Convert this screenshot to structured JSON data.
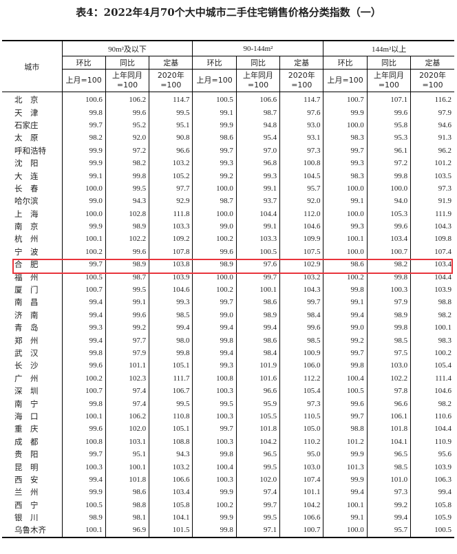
{
  "title": "表4：2022年4月70个大中城市二手住宅销售价格分类指数（一）",
  "header": {
    "city": "城市",
    "groups": [
      "90m²及以下",
      "90-144m²",
      "144m²以上"
    ],
    "metrics": [
      "环比",
      "同比",
      "定基"
    ],
    "bases": [
      "上月=100",
      "上年同月=100",
      "2020年=100"
    ]
  },
  "highlight_color": "#e8333a",
  "highlighted_city": "合　肥",
  "rows": [
    [
      "北　京",
      "100.6",
      "106.2",
      "114.7",
      "100.5",
      "106.6",
      "114.7",
      "100.7",
      "107.1",
      "116.2"
    ],
    [
      "天　津",
      "99.8",
      "99.6",
      "99.5",
      "99.1",
      "98.7",
      "97.6",
      "99.9",
      "99.6",
      "97.9"
    ],
    [
      "石家庄",
      "99.7",
      "95.2",
      "95.1",
      "99.9",
      "94.8",
      "93.0",
      "100.0",
      "95.8",
      "94.6"
    ],
    [
      "太　原",
      "98.2",
      "92.0",
      "90.8",
      "98.6",
      "95.4",
      "93.1",
      "98.3",
      "95.3",
      "91.3"
    ],
    [
      "呼和浩特",
      "99.9",
      "97.2",
      "96.6",
      "99.7",
      "97.0",
      "97.3",
      "99.7",
      "96.1",
      "96.2"
    ],
    [
      "沈　阳",
      "99.9",
      "98.2",
      "103.2",
      "99.3",
      "96.8",
      "100.8",
      "99.3",
      "97.2",
      "101.2"
    ],
    [
      "大　连",
      "99.1",
      "99.8",
      "105.2",
      "99.2",
      "99.3",
      "104.5",
      "98.3",
      "99.8",
      "103.5"
    ],
    [
      "长　春",
      "100.0",
      "99.5",
      "97.7",
      "100.0",
      "99.1",
      "95.7",
      "100.0",
      "100.0",
      "97.3"
    ],
    [
      "哈尔滨",
      "99.0",
      "94.3",
      "92.9",
      "98.7",
      "93.7",
      "92.0",
      "99.1",
      "94.0",
      "91.9"
    ],
    [
      "上　海",
      "100.0",
      "102.8",
      "111.8",
      "100.0",
      "104.4",
      "112.0",
      "100.0",
      "105.3",
      "111.9"
    ],
    [
      "南　京",
      "99.9",
      "98.9",
      "103.3",
      "99.0",
      "99.1",
      "104.6",
      "99.3",
      "99.6",
      "104.3"
    ],
    [
      "杭　州",
      "100.1",
      "102.2",
      "109.2",
      "100.2",
      "103.3",
      "109.9",
      "100.1",
      "103.4",
      "109.8"
    ],
    [
      "宁　波",
      "100.2",
      "99.6",
      "107.8",
      "99.6",
      "100.5",
      "107.5",
      "100.0",
      "100.7",
      "107.4"
    ],
    [
      "合　肥",
      "99.7",
      "98.9",
      "103.8",
      "98.9",
      "97.6",
      "102.9",
      "98.6",
      "98.2",
      "103.4"
    ],
    [
      "福　州",
      "100.5",
      "98.7",
      "103.9",
      "100.0",
      "99.7",
      "103.2",
      "100.2",
      "99.8",
      "104.4"
    ],
    [
      "厦　门",
      "100.7",
      "99.5",
      "104.6",
      "100.2",
      "100.1",
      "104.3",
      "99.8",
      "100.3",
      "103.9"
    ],
    [
      "南　昌",
      "99.4",
      "99.1",
      "99.3",
      "99.7",
      "98.6",
      "99.7",
      "99.1",
      "97.9",
      "98.8"
    ],
    [
      "济　南",
      "99.4",
      "99.6",
      "98.5",
      "99.0",
      "98.9",
      "98.4",
      "99.4",
      "98.9",
      "98.2"
    ],
    [
      "青　岛",
      "99.3",
      "99.2",
      "99.4",
      "99.4",
      "99.4",
      "99.6",
      "99.0",
      "99.8",
      "100.1"
    ],
    [
      "郑　州",
      "99.4",
      "97.7",
      "98.0",
      "99.8",
      "98.6",
      "98.5",
      "99.2",
      "98.5",
      "98.3"
    ],
    [
      "武　汉",
      "99.8",
      "97.9",
      "99.8",
      "99.4",
      "98.4",
      "100.9",
      "99.7",
      "97.5",
      "100.2"
    ],
    [
      "长　沙",
      "99.6",
      "101.1",
      "105.1",
      "99.3",
      "101.9",
      "106.0",
      "99.8",
      "103.0",
      "105.4"
    ],
    [
      "广　州",
      "100.2",
      "102.3",
      "111.7",
      "100.8",
      "101.6",
      "112.2",
      "100.4",
      "102.2",
      "111.4"
    ],
    [
      "深　圳",
      "100.7",
      "97.4",
      "106.7",
      "100.3",
      "96.6",
      "105.4",
      "100.5",
      "97.8",
      "104.6"
    ],
    [
      "南　宁",
      "99.8",
      "97.4",
      "99.5",
      "99.5",
      "95.9",
      "97.3",
      "99.6",
      "96.6",
      "98.2"
    ],
    [
      "海　口",
      "100.1",
      "106.2",
      "110.8",
      "100.3",
      "105.5",
      "110.5",
      "99.7",
      "106.1",
      "110.6"
    ],
    [
      "重　庆",
      "99.6",
      "102.0",
      "105.1",
      "99.7",
      "101.8",
      "105.0",
      "98.8",
      "101.8",
      "104.4"
    ],
    [
      "成　都",
      "100.8",
      "103.1",
      "108.8",
      "100.3",
      "104.2",
      "110.2",
      "101.2",
      "104.1",
      "110.9"
    ],
    [
      "贵　阳",
      "99.7",
      "95.1",
      "94.3",
      "99.8",
      "96.5",
      "95.0",
      "99.9",
      "96.5",
      "95.6"
    ],
    [
      "昆　明",
      "100.3",
      "100.1",
      "103.2",
      "100.4",
      "99.5",
      "103.0",
      "101.3",
      "98.5",
      "103.9"
    ],
    [
      "西　安",
      "99.4",
      "101.8",
      "106.6",
      "100.3",
      "102.0",
      "107.4",
      "99.9",
      "101.0",
      "106.3"
    ],
    [
      "兰　州",
      "99.9",
      "98.6",
      "103.4",
      "99.9",
      "97.4",
      "101.1",
      "99.4",
      "97.3",
      "99.4"
    ],
    [
      "西　宁",
      "100.5",
      "98.8",
      "105.8",
      "100.2",
      "99.7",
      "104.2",
      "100.1",
      "99.2",
      "105.8"
    ],
    [
      "银　川",
      "98.9",
      "98.1",
      "104.1",
      "99.9",
      "99.5",
      "106.6",
      "99.1",
      "99.4",
      "105.9"
    ],
    [
      "乌鲁木齐",
      "100.1",
      "96.9",
      "101.5",
      "99.8",
      "97.1",
      "100.7",
      "100.0",
      "95.7",
      "100.5"
    ]
  ]
}
